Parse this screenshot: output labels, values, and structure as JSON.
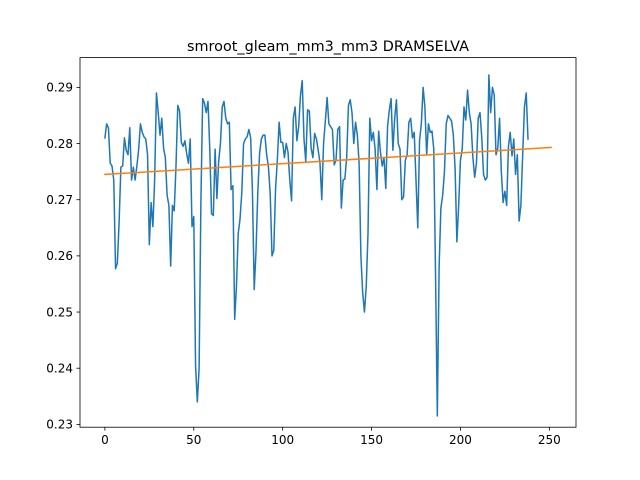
{
  "chart_data": {
    "type": "line",
    "title": "smroot_gleam_mm3_mm3 DRAMSELVA",
    "xlabel": "",
    "ylabel": "",
    "xlim": [
      -14,
      265
    ],
    "ylim": [
      0.2295,
      0.2953
    ],
    "xticks": [
      0,
      50,
      100,
      150,
      200,
      250
    ],
    "xtick_labels": [
      "0",
      "50",
      "100",
      "150",
      "200",
      "250"
    ],
    "yticks": [
      0.23,
      0.24,
      0.25,
      0.26,
      0.27,
      0.28,
      0.29
    ],
    "ytick_labels": [
      "0.23",
      "0.24",
      "0.25",
      "0.26",
      "0.27",
      "0.28",
      "0.29"
    ],
    "grid": false,
    "series": [
      {
        "color": "#1f77b4",
        "x_start": 0,
        "x_step": 1,
        "values": [
          0.281,
          0.2835,
          0.2828,
          0.2765,
          0.276,
          0.2735,
          0.2577,
          0.2587,
          0.266,
          0.2758,
          0.276,
          0.281,
          0.2788,
          0.278,
          0.2828,
          0.2735,
          0.2758,
          0.2735,
          0.276,
          0.279,
          0.2835,
          0.282,
          0.2812,
          0.2808,
          0.278,
          0.262,
          0.2695,
          0.2652,
          0.2737,
          0.289,
          0.2855,
          0.2815,
          0.2845,
          0.2792,
          0.2775,
          0.2708,
          0.269,
          0.2582,
          0.269,
          0.268,
          0.276,
          0.2868,
          0.2858,
          0.2802,
          0.2795,
          0.2805,
          0.2782,
          0.2765,
          0.2808,
          0.2652,
          0.267,
          0.2405,
          0.234,
          0.24,
          0.2695,
          0.288,
          0.2872,
          0.2855,
          0.2875,
          0.279,
          0.2675,
          0.2672,
          0.279,
          0.2702,
          0.2768,
          0.28,
          0.2865,
          0.2875,
          0.2845,
          0.2835,
          0.2838,
          0.2718,
          0.2725,
          0.2487,
          0.2545,
          0.264,
          0.2665,
          0.2712,
          0.28,
          0.2808,
          0.2812,
          0.2825,
          0.281,
          0.2715,
          0.254,
          0.2608,
          0.2712,
          0.2782,
          0.2808,
          0.2815,
          0.2815,
          0.278,
          0.2758,
          0.271,
          0.26,
          0.261,
          0.272,
          0.277,
          0.2838,
          0.2802,
          0.2802,
          0.2775,
          0.28,
          0.2785,
          0.2735,
          0.2698,
          0.2845,
          0.2865,
          0.2805,
          0.283,
          0.2885,
          0.2912,
          0.2808,
          0.2768,
          0.286,
          0.2858,
          0.2792,
          0.2775,
          0.2818,
          0.2808,
          0.2788,
          0.2765,
          0.27,
          0.28,
          0.284,
          0.2882,
          0.2835,
          0.283,
          0.2825,
          0.2762,
          0.277,
          0.2825,
          0.283,
          0.2685,
          0.2735,
          0.2737,
          0.2775,
          0.2868,
          0.2878,
          0.2855,
          0.28,
          0.2838,
          0.2815,
          0.2765,
          0.26,
          0.2535,
          0.25,
          0.2545,
          0.264,
          0.2845,
          0.2805,
          0.282,
          0.279,
          0.2718,
          0.2822,
          0.2785,
          0.276,
          0.2775,
          0.272,
          0.283,
          0.286,
          0.288,
          0.2788,
          0.2845,
          0.2878,
          0.28,
          0.279,
          0.27,
          0.2705,
          0.277,
          0.278,
          0.2838,
          0.2845,
          0.281,
          0.282,
          0.2735,
          0.265,
          0.2805,
          0.2835,
          0.29,
          0.2865,
          0.278,
          0.2835,
          0.282,
          0.2822,
          0.279,
          0.2565,
          0.2315,
          0.258,
          0.2685,
          0.2708,
          0.275,
          0.2835,
          0.285,
          0.2845,
          0.284,
          0.2815,
          0.2755,
          0.2625,
          0.269,
          0.277,
          0.279,
          0.2865,
          0.2842,
          0.2895,
          0.2855,
          0.2835,
          0.2775,
          0.274,
          0.2765,
          0.2845,
          0.2855,
          0.281,
          0.2745,
          0.2735,
          0.274,
          0.2922,
          0.2855,
          0.29,
          0.2887,
          0.278,
          0.2792,
          0.2845,
          0.275,
          0.2695,
          0.2715,
          0.269,
          0.2795,
          0.282,
          0.2778,
          0.2808,
          0.2745,
          0.278,
          0.2662,
          0.269,
          0.278,
          0.2865,
          0.289,
          0.2808
        ]
      },
      {
        "color": "#ff7f0e",
        "x": [
          0,
          251
        ],
        "values": [
          0.2745,
          0.2793
        ]
      }
    ]
  }
}
